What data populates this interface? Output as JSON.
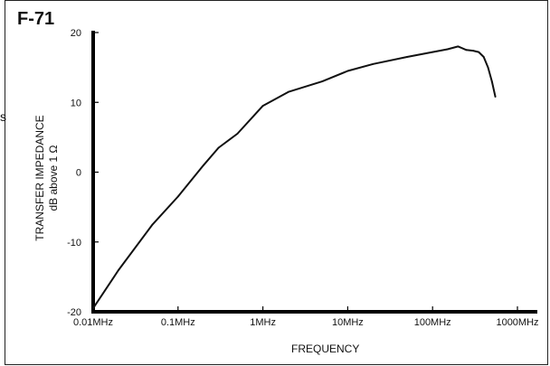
{
  "side_text": "s",
  "chart_data": {
    "type": "line",
    "title": "F-71",
    "xlabel": "FREQUENCY",
    "ylabel": [
      "TRANSFER IMPEDANCE",
      "dB above 1 Ω"
    ],
    "xscale": "log",
    "xlim": [
      0.01,
      1000
    ],
    "ylim": [
      -20,
      20
    ],
    "grid": false,
    "x_tick_labels": [
      "0.01MHz",
      "0.1MHz",
      "1MHz",
      "10MHz",
      "100MHz",
      "1000MHz"
    ],
    "x_ticks": [
      0.01,
      0.1,
      1,
      10,
      100,
      1000
    ],
    "y_ticks": [
      20,
      10,
      0,
      -10,
      -20
    ],
    "series": [
      {
        "x_unit": "MHz",
        "x": [
          0.01,
          0.02,
          0.05,
          0.1,
          0.2,
          0.3,
          0.5,
          1,
          2,
          5,
          10,
          20,
          50,
          100,
          150,
          200,
          250,
          300,
          350,
          400,
          450,
          500,
          550
        ],
        "y": [
          -19.5,
          -14,
          -7.5,
          -3.5,
          1,
          3.5,
          5.5,
          9.5,
          11.5,
          13,
          14.5,
          15.5,
          16.5,
          17.2,
          17.6,
          18.0,
          17.5,
          17.4,
          17.2,
          16.5,
          15.0,
          13.0,
          10.8
        ]
      }
    ]
  }
}
